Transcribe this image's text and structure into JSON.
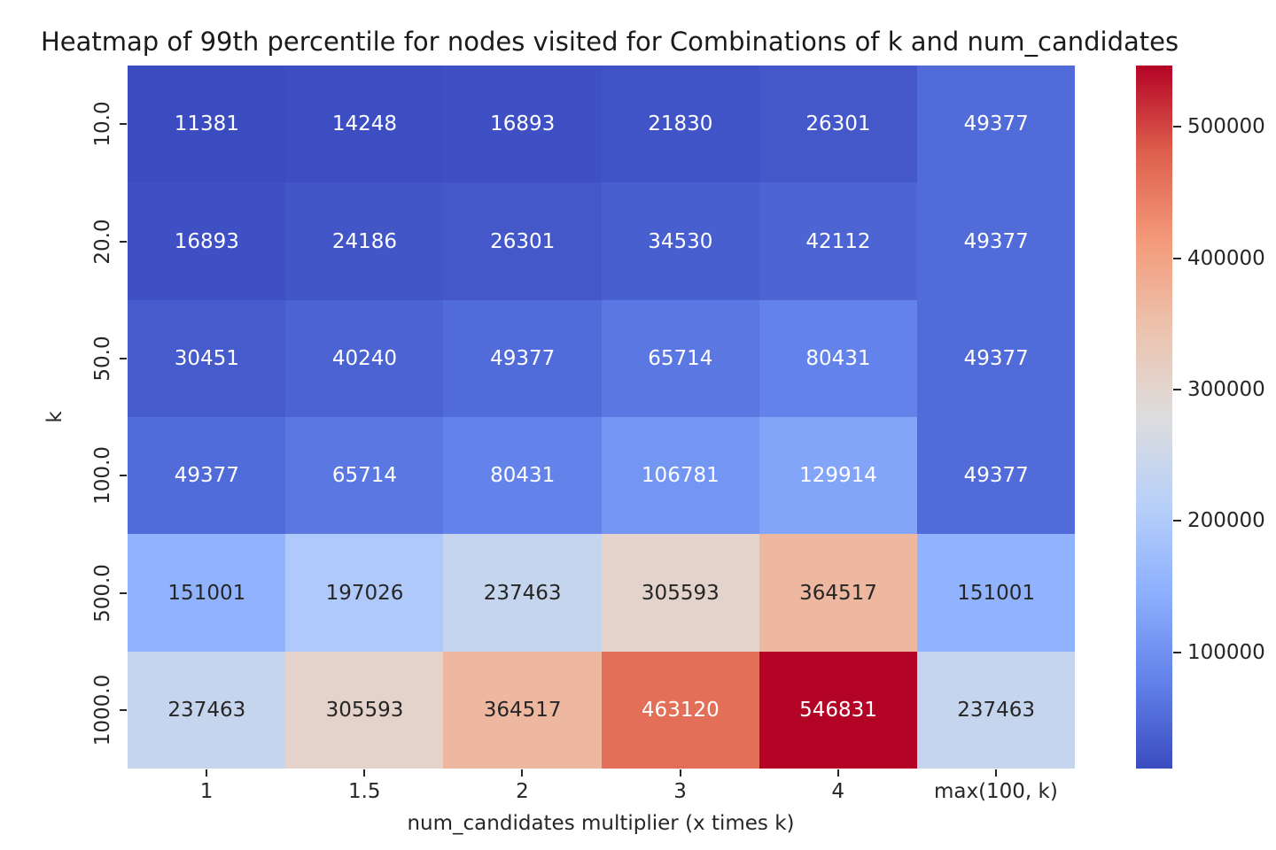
{
  "chart_data": {
    "type": "heatmap",
    "title": "Heatmap of 99th percentile for nodes visited for Combinations of k and num_candidates",
    "xlabel": "num_candidates multiplier (x times k)",
    "ylabel": "k",
    "x_tick_labels": [
      "1",
      "1.5",
      "2",
      "3",
      "4",
      "max(100, k)"
    ],
    "y_tick_labels": [
      "10.0",
      "20.0",
      "50.0",
      "100.0",
      "500.0",
      "1000.0"
    ],
    "values": [
      [
        11381,
        14248,
        16893,
        21830,
        26301,
        49377
      ],
      [
        16893,
        24186,
        26301,
        34530,
        42112,
        49377
      ],
      [
        30451,
        40240,
        49377,
        65714,
        80431,
        49377
      ],
      [
        49377,
        65714,
        80431,
        106781,
        129914,
        49377
      ],
      [
        151001,
        197026,
        237463,
        305593,
        364517,
        151001
      ],
      [
        237463,
        305593,
        364517,
        463120,
        546831,
        237463
      ]
    ],
    "vmin": 11381,
    "vmax": 546831,
    "colormap": {
      "name": "coolwarm",
      "stops": [
        "#3B4CC0",
        "#6282EA",
        "#8DB0FE",
        "#B8D0F9",
        "#DDDDDD",
        "#ECC3AE",
        "#F49A7B",
        "#DE604D",
        "#B40426"
      ]
    },
    "colorbar_tick_values": [
      100000,
      200000,
      300000,
      400000,
      500000
    ],
    "colorbar_tick_labels": [
      "100000",
      "200000",
      "300000",
      "400000",
      "500000"
    ],
    "annotation_colors": {
      "dark": "#262626",
      "light": "#ffffff"
    },
    "axis_text_color": "#262626",
    "legend_position": "right-colorbar",
    "grid": false
  }
}
